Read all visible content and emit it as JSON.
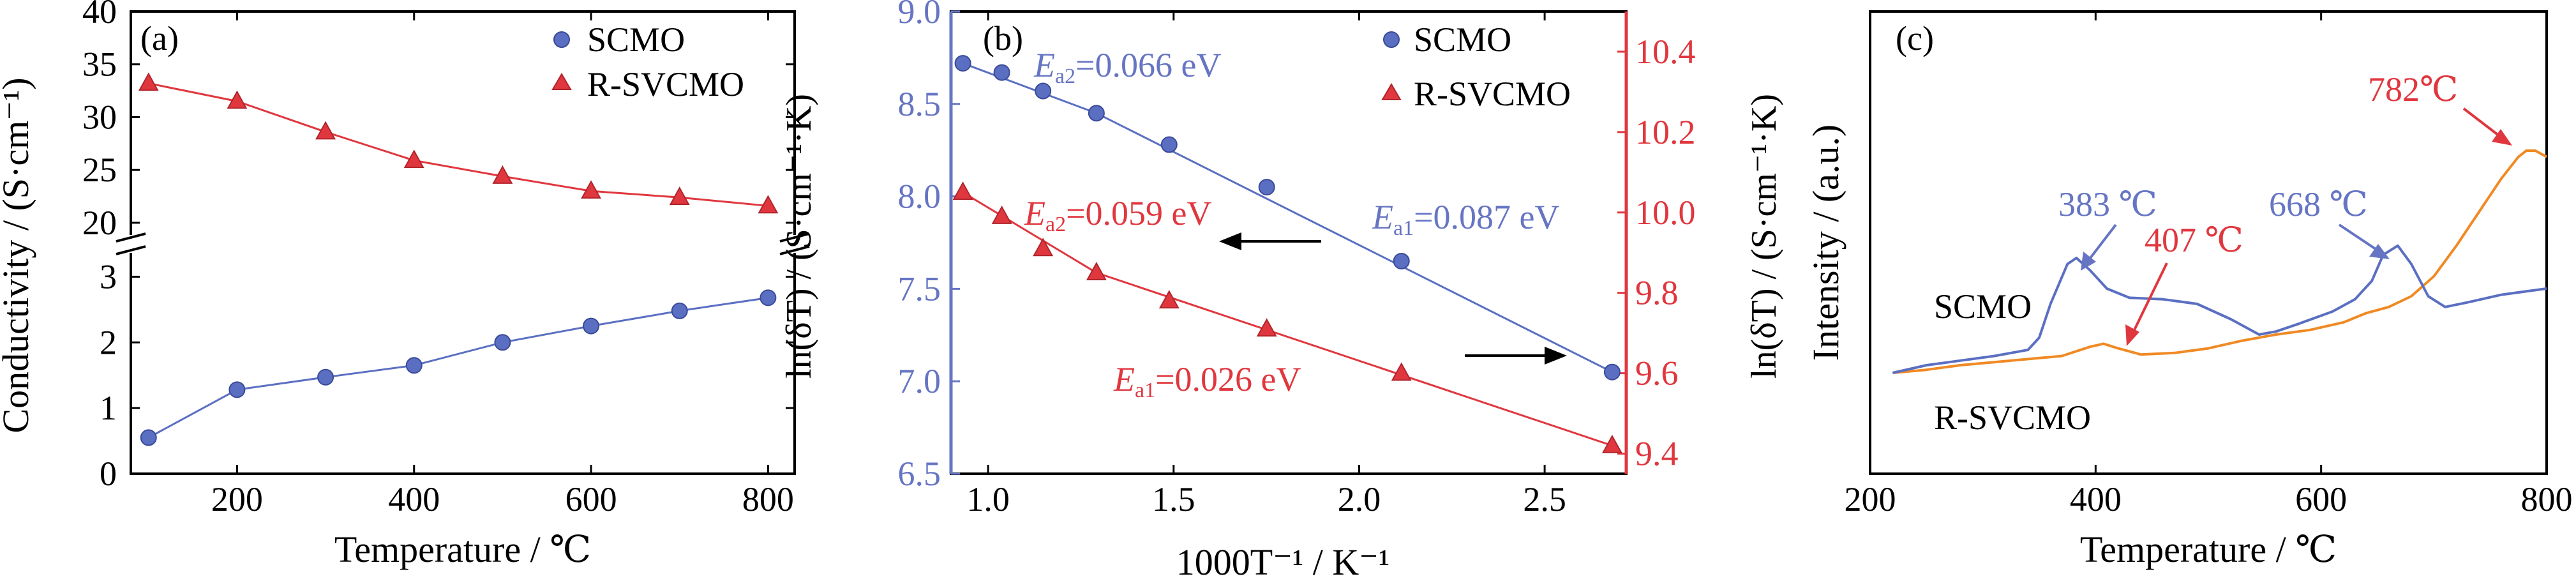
{
  "colors": {
    "scmo": "#5B6FC2",
    "rsvcmo": "#E0373F",
    "orange": "#F08A24",
    "axis": "#000000",
    "red_axis": "#E0373F",
    "blue_axis": "#6675C3"
  },
  "chart_data": [
    {
      "type": "line",
      "panel": "(a)",
      "xlabel": "Temperature / ℃",
      "ylabel": "Conductivity / (S·cm⁻¹)",
      "xlim": [
        80,
        830
      ],
      "xticks": [
        "200",
        "400",
        "600",
        "800"
      ],
      "ylim_lower": [
        0,
        3.5
      ],
      "ylim_upper": [
        18,
        40
      ],
      "yticks_lower": [
        "0",
        "1",
        "2",
        "3"
      ],
      "yticks_upper": [
        "20",
        "25",
        "30",
        "35",
        "40"
      ],
      "broken_axis": true,
      "legend": "top-right",
      "series": [
        {
          "name": "SCMO",
          "marker": "circle",
          "x": [
            100,
            200,
            300,
            400,
            500,
            600,
            700,
            800
          ],
          "y": [
            0.55,
            1.28,
            1.47,
            1.65,
            2.0,
            2.25,
            2.48,
            2.68
          ]
        },
        {
          "name": "R-SVCMO",
          "marker": "triangle",
          "x": [
            100,
            200,
            300,
            400,
            500,
            600,
            700,
            800
          ],
          "y": [
            33.2,
            31.5,
            28.6,
            25.9,
            24.4,
            23.0,
            22.4,
            21.6
          ]
        }
      ]
    },
    {
      "type": "scatter",
      "panel": "(b)",
      "xlabel": "1000T⁻¹ / K⁻¹",
      "ylabel_left": "ln(δT) / (S·cm⁻¹·K)",
      "ylabel_right": "ln(δT) / (S·cm⁻¹·K)",
      "xlim": [
        0.9,
        2.72
      ],
      "xticks": [
        "1.0",
        "1.5",
        "2.0",
        "2.5"
      ],
      "ylim_left": [
        6.5,
        9.0
      ],
      "yticks_left": [
        "6.5",
        "7.0",
        "7.5",
        "8.0",
        "8.5",
        "9.0"
      ],
      "ylim_right": [
        9.35,
        10.5
      ],
      "yticks_right": [
        "9.4",
        "9.6",
        "9.8",
        "10.0",
        "10.2",
        "10.4"
      ],
      "legend": "top-right",
      "series": [
        {
          "name": "SCMO",
          "axis": "left",
          "marker": "circle",
          "x": [
            0.932,
            1.037,
            1.148,
            1.292,
            1.488,
            1.751,
            2.114,
            2.682
          ],
          "y": [
            8.72,
            8.67,
            8.57,
            8.45,
            8.28,
            8.05,
            7.65,
            7.05
          ]
        },
        {
          "name": "R-SVCMO",
          "axis": "right",
          "marker": "triangle",
          "x": [
            0.932,
            1.037,
            1.148,
            1.292,
            1.488,
            1.751,
            2.114,
            2.682
          ],
          "y": [
            10.05,
            9.99,
            9.91,
            9.85,
            9.78,
            9.71,
            9.6,
            9.42
          ]
        }
      ],
      "annotations": [
        {
          "text_pre": "E",
          "sub": "a2",
          "value": "=0.066 eV",
          "color": "#6675C3"
        },
        {
          "text_pre": "E",
          "sub": "a1",
          "value": "=0.087 eV",
          "color": "#6675C3"
        },
        {
          "text_pre": "E",
          "sub": "a2",
          "value": "=0.059 eV",
          "color": "#E0373F"
        },
        {
          "text_pre": "E",
          "sub": "a1",
          "value": "=0.026 eV",
          "color": "#E0373F"
        }
      ]
    },
    {
      "type": "line",
      "panel": "(c)",
      "xlabel": "Temperature / ℃",
      "ylabel": "Intensity / (a.u.)",
      "xlim": [
        200,
        800
      ],
      "xticks": [
        "200",
        "400",
        "600",
        "800"
      ],
      "series": [
        {
          "name": "SCMO",
          "x": [
            220,
            250,
            280,
            310,
            340,
            350,
            360,
            375,
            383,
            395,
            410,
            430,
            460,
            490,
            520,
            545,
            560,
            580,
            610,
            630,
            645,
            655,
            668,
            680,
            695,
            710,
            730,
            760,
            800
          ],
          "y": [
            0.15,
            0.2,
            0.23,
            0.26,
            0.3,
            0.38,
            0.6,
            0.86,
            0.9,
            0.82,
            0.7,
            0.64,
            0.63,
            0.6,
            0.5,
            0.4,
            0.42,
            0.47,
            0.55,
            0.63,
            0.75,
            0.92,
            0.98,
            0.86,
            0.65,
            0.58,
            0.61,
            0.66,
            0.7
          ]
        },
        {
          "name": "R-SVCMO",
          "x": [
            220,
            250,
            280,
            310,
            340,
            370,
            395,
            407,
            420,
            440,
            470,
            500,
            530,
            560,
            590,
            620,
            640,
            660,
            680,
            700,
            720,
            740,
            760,
            775,
            782,
            790,
            800
          ],
          "y": [
            0.15,
            0.17,
            0.2,
            0.22,
            0.24,
            0.26,
            0.32,
            0.34,
            0.31,
            0.27,
            0.28,
            0.31,
            0.36,
            0.4,
            0.43,
            0.48,
            0.54,
            0.58,
            0.65,
            0.78,
            0.98,
            1.2,
            1.42,
            1.56,
            1.6,
            1.6,
            1.56
          ]
        }
      ],
      "labels": {
        "scmo": "SCMO",
        "rsvcmo": "R-SVCMO",
        "peak1": "383 ℃",
        "peak2": "407 ℃",
        "peak3": "668 ℃",
        "peak4": "782℃"
      }
    }
  ]
}
